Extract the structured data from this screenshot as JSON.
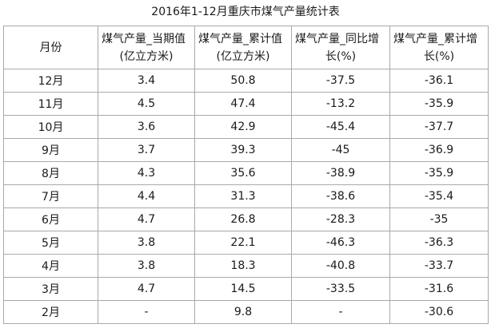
{
  "title": "2016年1-12月重庆市煤气产量统计表",
  "headers": [
    {
      "line1": "月份",
      "line2": ""
    },
    {
      "line1": "煤气产量_当期值",
      "line2": "(亿立方米)"
    },
    {
      "line1": "煤气产量_累计值",
      "line2": "(亿立方米)"
    },
    {
      "line1": "煤气产量_同比增",
      "line2": "长(%)"
    },
    {
      "line1": "煤气产量_累计增",
      "line2": "长(%)"
    }
  ],
  "rows": [
    {
      "month": "12月",
      "current": "3.4",
      "cumulative": "50.8",
      "yoy": "-37.5",
      "cum_growth": "-36.1"
    },
    {
      "month": "11月",
      "current": "4.5",
      "cumulative": "47.4",
      "yoy": "-13.2",
      "cum_growth": "-35.9"
    },
    {
      "month": "10月",
      "current": "3.6",
      "cumulative": "42.9",
      "yoy": "-45.4",
      "cum_growth": "-37.7"
    },
    {
      "month": "9月",
      "current": "3.7",
      "cumulative": "39.3",
      "yoy": "-45",
      "cum_growth": "-36.9"
    },
    {
      "month": "8月",
      "current": "4.3",
      "cumulative": "35.6",
      "yoy": "-38.9",
      "cum_growth": "-35.9"
    },
    {
      "month": "7月",
      "current": "4.4",
      "cumulative": "31.3",
      "yoy": "-38.6",
      "cum_growth": "-35.4"
    },
    {
      "month": "6月",
      "current": "4.7",
      "cumulative": "26.8",
      "yoy": "-28.3",
      "cum_growth": "-35"
    },
    {
      "month": "5月",
      "current": "3.8",
      "cumulative": "22.1",
      "yoy": "-46.3",
      "cum_growth": "-36.3"
    },
    {
      "month": "4月",
      "current": "3.8",
      "cumulative": "18.3",
      "yoy": "-40.8",
      "cum_growth": "-33.7"
    },
    {
      "month": "3月",
      "current": "4.7",
      "cumulative": "14.5",
      "yoy": "-33.5",
      "cum_growth": "-31.6"
    },
    {
      "month": "2月",
      "current": "-",
      "cumulative": "9.8",
      "yoy": "-",
      "cum_growth": "-30.6"
    }
  ]
}
